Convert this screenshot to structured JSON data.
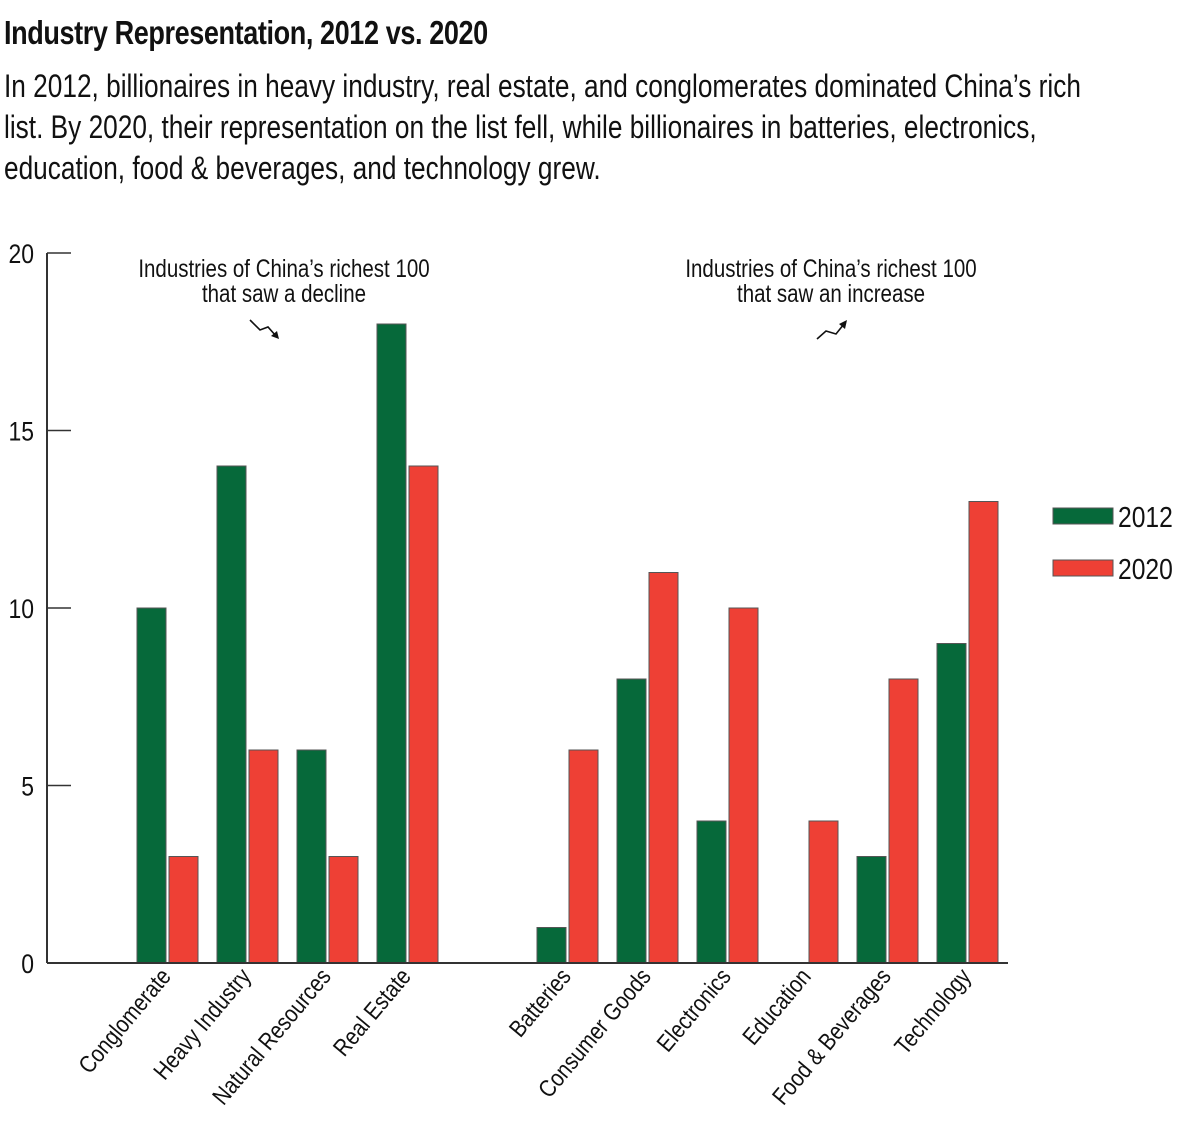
{
  "header": {
    "title": "Industry Representation, 2012 vs. 2020",
    "subtitle_lines": [
      "In 2012, billionaires in heavy industry, real estate, and conglomerates dominated China’s rich",
      "list. By 2020, their representation on the list fell, while billionaires in batteries, electronics,",
      "education, food & beverages, and technology grew."
    ]
  },
  "chart_data": {
    "type": "bar",
    "title": "Industry Representation, 2012 vs. 2020",
    "xlabel": "",
    "ylabel": "",
    "ylim": [
      0,
      20
    ],
    "yticks": [
      0,
      5,
      10,
      15,
      20
    ],
    "grid": false,
    "legend_position": "right",
    "groups": [
      {
        "annotation": [
          "Industries of China’s richest 100",
          "that saw a decline"
        ],
        "arrow": "decline-arrow",
        "categories": [
          "Conglomerate",
          "Heavy Industry",
          "Natural Resources",
          "Real Estate"
        ]
      },
      {
        "annotation": [
          "Industries of China’s richest 100",
          "that saw an increase"
        ],
        "arrow": "increase-arrow",
        "categories": [
          "Batteries",
          "Consumer Goods",
          "Electronics",
          "Education",
          "Food & Beverages",
          "Technology"
        ]
      }
    ],
    "categories": [
      "Conglomerate",
      "Heavy Industry",
      "Natural Resources",
      "Real Estate",
      "Batteries",
      "Consumer Goods",
      "Electronics",
      "Education",
      "Food & Beverages",
      "Technology"
    ],
    "series": [
      {
        "name": "2012",
        "color": "#06693a",
        "values": [
          10,
          14,
          6,
          18,
          1,
          8,
          4,
          0,
          3,
          9
        ]
      },
      {
        "name": "2020",
        "color": "#ee4035",
        "values": [
          3,
          6,
          3,
          14,
          6,
          11,
          10,
          4,
          8,
          13
        ]
      }
    ]
  }
}
